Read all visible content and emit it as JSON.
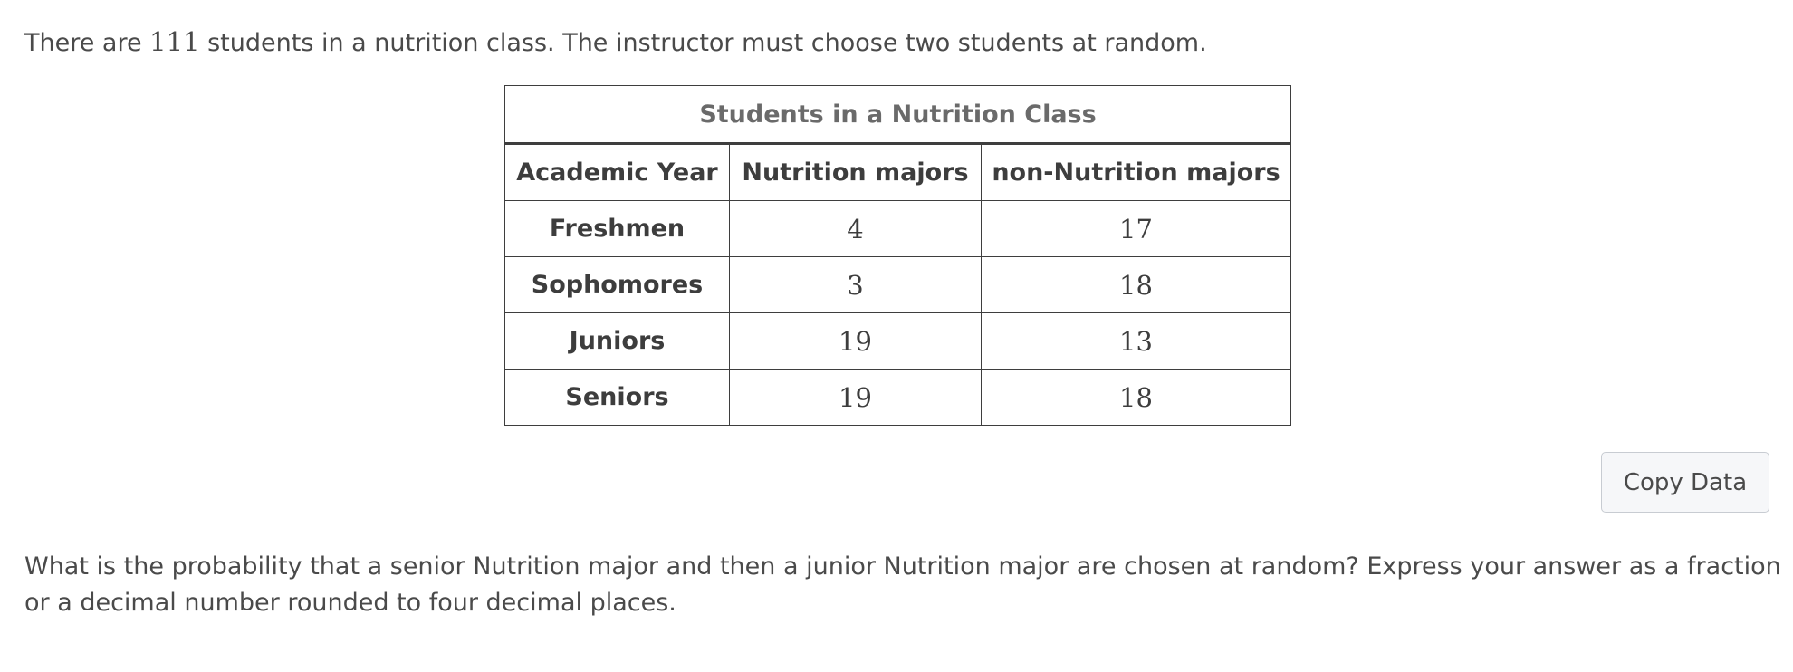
{
  "problem": {
    "intro_before": "There are ",
    "student_count": "111",
    "intro_after": " students in a nutrition class. The instructor must choose two students at random."
  },
  "table": {
    "caption": "Students in a Nutrition Class",
    "headers": [
      "Academic Year",
      "Nutrition majors",
      "non-Nutrition majors"
    ],
    "rows": [
      {
        "year": "Freshmen",
        "nutrition": "4",
        "non_nutrition": "17"
      },
      {
        "year": "Sophomores",
        "nutrition": "3",
        "non_nutrition": "18"
      },
      {
        "year": "Juniors",
        "nutrition": "19",
        "non_nutrition": "13"
      },
      {
        "year": "Seniors",
        "nutrition": "19",
        "non_nutrition": "18"
      }
    ]
  },
  "copy_button": {
    "label": "Copy Data"
  },
  "question": {
    "text": "What is the probability that a senior Nutrition major and then a junior Nutrition major are chosen at random? Express your answer as a fraction or a decimal number rounded to four decimal places."
  }
}
